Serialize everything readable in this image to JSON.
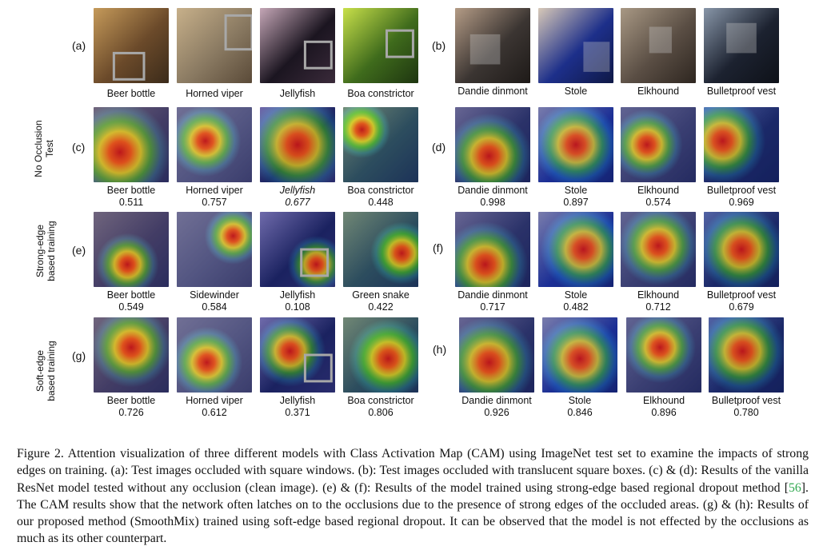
{
  "figure": {
    "row_labels": [
      {
        "id": "no-occlusion",
        "lines": [
          "No Occlusion",
          "Test"
        ]
      },
      {
        "id": "strong-edge",
        "lines": [
          "Strong-edge",
          "based training"
        ]
      },
      {
        "id": "soft-edge",
        "lines": [
          "Soft-edge",
          "based training"
        ]
      }
    ],
    "panels": [
      {
        "letter": "(a)",
        "type": "occlusion-square",
        "labels": [
          "Beer bottle",
          "Horned viper",
          "Jellyfish",
          "Boa constrictor"
        ],
        "scores": [
          "",
          "",
          "",
          ""
        ]
      },
      {
        "letter": "(b)",
        "type": "occlusion-translucent",
        "labels": [
          "Dandie dinmont",
          "Stole",
          "Elkhound",
          "Bulletproof vest"
        ],
        "scores": [
          "",
          "",
          "",
          ""
        ]
      },
      {
        "letter": "(c)",
        "type": "cam",
        "labels": [
          "Beer bottle",
          "Horned viper",
          "Jellyfish",
          "Boa constrictor"
        ],
        "scores": [
          "0.511",
          "0.757",
          "0.677",
          "0.448"
        ]
      },
      {
        "letter": "(d)",
        "type": "cam",
        "labels": [
          "Dandie dinmont",
          "Stole",
          "Elkhound",
          "Bulletproof vest"
        ],
        "scores": [
          "0.998",
          "0.897",
          "0.574",
          "0.969"
        ]
      },
      {
        "letter": "(e)",
        "type": "cam",
        "labels": [
          "Beer bottle",
          "Sidewinder",
          "Jellyfish",
          "Green snake"
        ],
        "scores": [
          "0.549",
          "0.584",
          "0.108",
          "0.422"
        ]
      },
      {
        "letter": "(f)",
        "type": "cam",
        "labels": [
          "Dandie dinmont",
          "Stole",
          "Elkhound",
          "Bulletproof vest"
        ],
        "scores": [
          "0.717",
          "0.482",
          "0.712",
          "0.679"
        ]
      },
      {
        "letter": "(g)",
        "type": "cam",
        "labels": [
          "Beer bottle",
          "Horned viper",
          "Jellyfish",
          "Boa constrictor"
        ],
        "scores": [
          "0.726",
          "0.612",
          "0.371",
          "0.806"
        ]
      },
      {
        "letter": "(h)",
        "type": "cam",
        "labels": [
          "Dandie dinmont",
          "Stole",
          "Elkhound",
          "Bulletproof vest"
        ],
        "scores": [
          "0.926",
          "0.846",
          "0.896",
          "0.780"
        ]
      }
    ]
  },
  "caption": {
    "part1": "Figure 2. Attention visualization of three different models with Class Activation Map (CAM) using ImageNet test set to examine the impacts of strong edges on training. (a): Test images occluded with square windows. (b): Test images occluded with translucent square boxes. (c) & (d): Results of the vanilla ResNet model tested without any occlusion (clean image). (e) & (f): Results of the model trained using strong-edge based regional dropout method [",
    "citation": "56",
    "part2": "]. The CAM results show that the network often latches on to the occlusions due to the presence of strong edges of the occluded areas. (g) & (h): Results of our proposed method (SmoothMix) trained using soft-edge based regional dropout. It can be observed that the model is not effected by the occlusions as much as its other counterpart."
  }
}
